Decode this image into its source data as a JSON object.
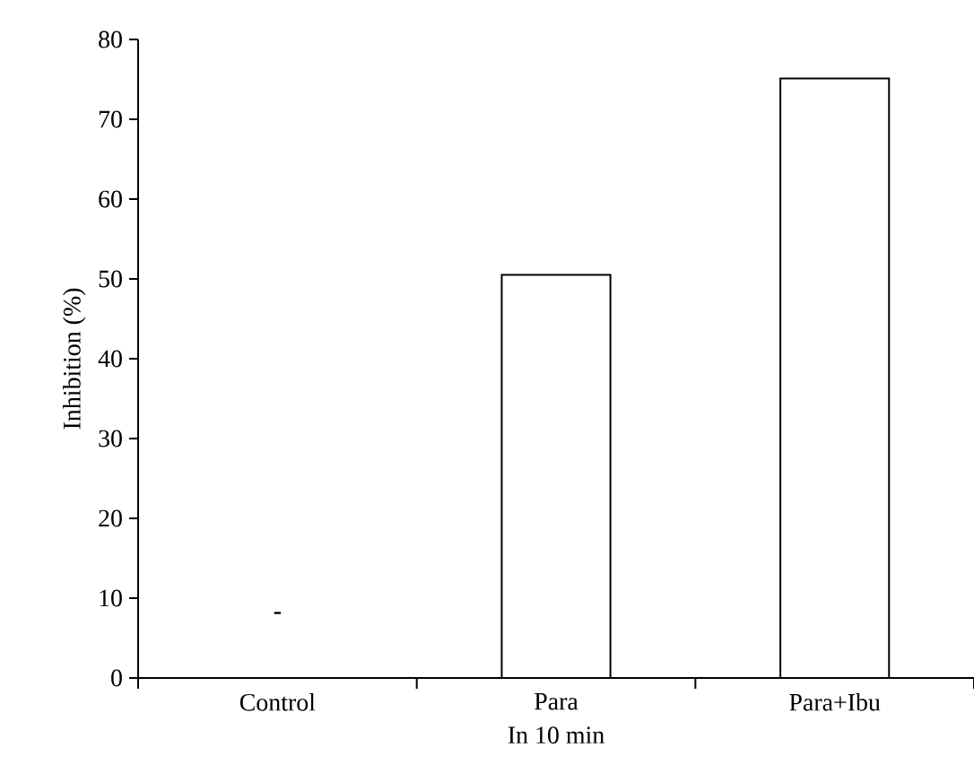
{
  "chart_data": {
    "type": "bar",
    "xlabel": "In 10 min",
    "ylabel": "Inhibition (%)",
    "categories": [
      "Control",
      "Para",
      "Para+Ibu"
    ],
    "values": [
      null,
      50.5,
      75.1
    ],
    "color": "#ffffff",
    "ylim": [
      0,
      80
    ],
    "yticks": [
      0,
      10,
      20,
      30,
      40,
      50,
      60,
      70,
      80
    ],
    "annotations": [
      "-"
    ]
  }
}
